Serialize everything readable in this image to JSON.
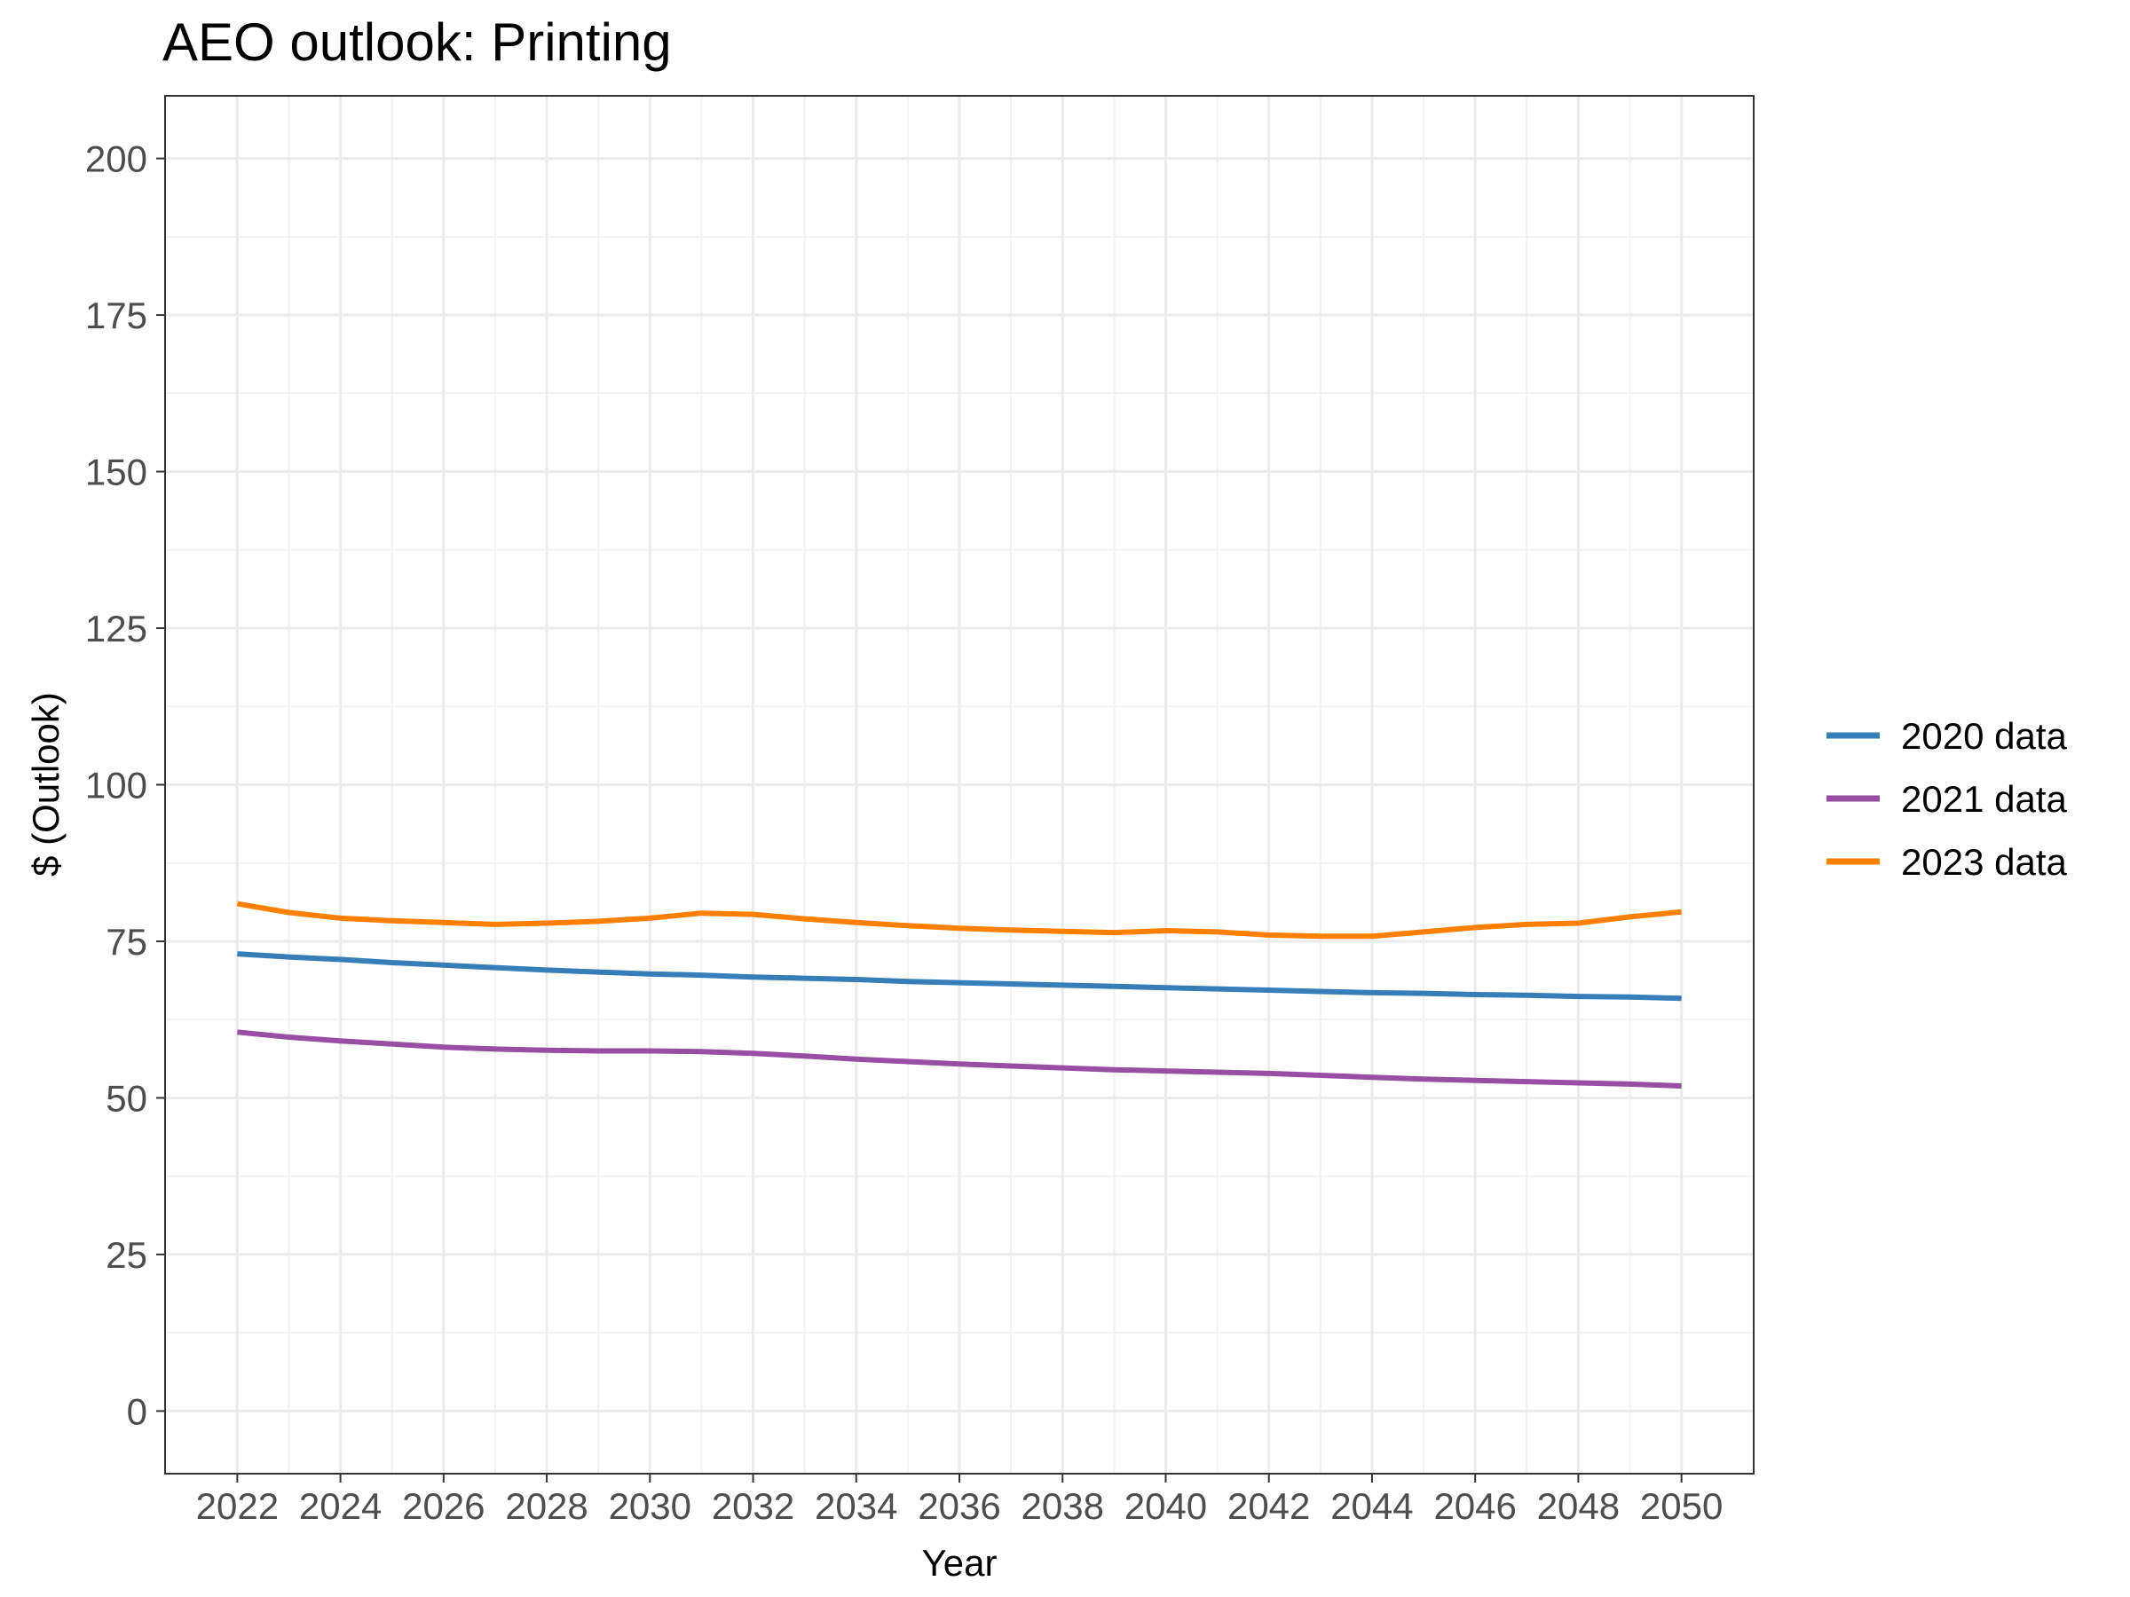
{
  "chart_data": {
    "type": "line",
    "title": "AEO outlook: Printing",
    "xlabel": "Year",
    "ylabel": "$ (Outlook)",
    "xlim": [
      2020.6,
      2051.4
    ],
    "ylim": [
      -10,
      210
    ],
    "x_ticks": [
      2022,
      2024,
      2026,
      2028,
      2030,
      2032,
      2034,
      2036,
      2038,
      2040,
      2042,
      2044,
      2046,
      2048,
      2050
    ],
    "y_ticks": [
      0,
      25,
      50,
      75,
      100,
      125,
      150,
      175,
      200
    ],
    "grid": true,
    "legend_position": "right",
    "x": [
      2022,
      2023,
      2024,
      2025,
      2026,
      2027,
      2028,
      2029,
      2030,
      2031,
      2032,
      2033,
      2034,
      2035,
      2036,
      2037,
      2038,
      2039,
      2040,
      2041,
      2042,
      2043,
      2044,
      2045,
      2046,
      2047,
      2048,
      2049,
      2050
    ],
    "series": [
      {
        "name": "2020 data",
        "color": "#377EB8",
        "values": [
          73.0,
          72.5,
          72.1,
          71.6,
          71.2,
          70.8,
          70.4,
          70.1,
          69.8,
          69.6,
          69.3,
          69.1,
          68.9,
          68.6,
          68.4,
          68.2,
          68.0,
          67.8,
          67.6,
          67.4,
          67.2,
          67.0,
          66.8,
          66.7,
          66.5,
          66.4,
          66.2,
          66.1,
          65.9
        ]
      },
      {
        "name": "2021 data",
        "color": "#984EA3",
        "values": [
          60.5,
          59.7,
          59.1,
          58.6,
          58.1,
          57.8,
          57.6,
          57.5,
          57.5,
          57.4,
          57.1,
          56.7,
          56.2,
          55.8,
          55.4,
          55.1,
          54.8,
          54.5,
          54.3,
          54.1,
          53.9,
          53.6,
          53.3,
          53.0,
          52.8,
          52.6,
          52.4,
          52.2,
          51.9
        ]
      },
      {
        "name": "2023 data",
        "color": "#FF7F00",
        "values": [
          81.0,
          79.6,
          78.7,
          78.3,
          78.0,
          77.7,
          77.9,
          78.2,
          78.7,
          79.5,
          79.3,
          78.6,
          78.0,
          77.5,
          77.1,
          76.8,
          76.6,
          76.4,
          76.7,
          76.5,
          76.0,
          75.8,
          75.8,
          76.5,
          77.2,
          77.7,
          77.9,
          78.9,
          79.7
        ]
      }
    ]
  }
}
